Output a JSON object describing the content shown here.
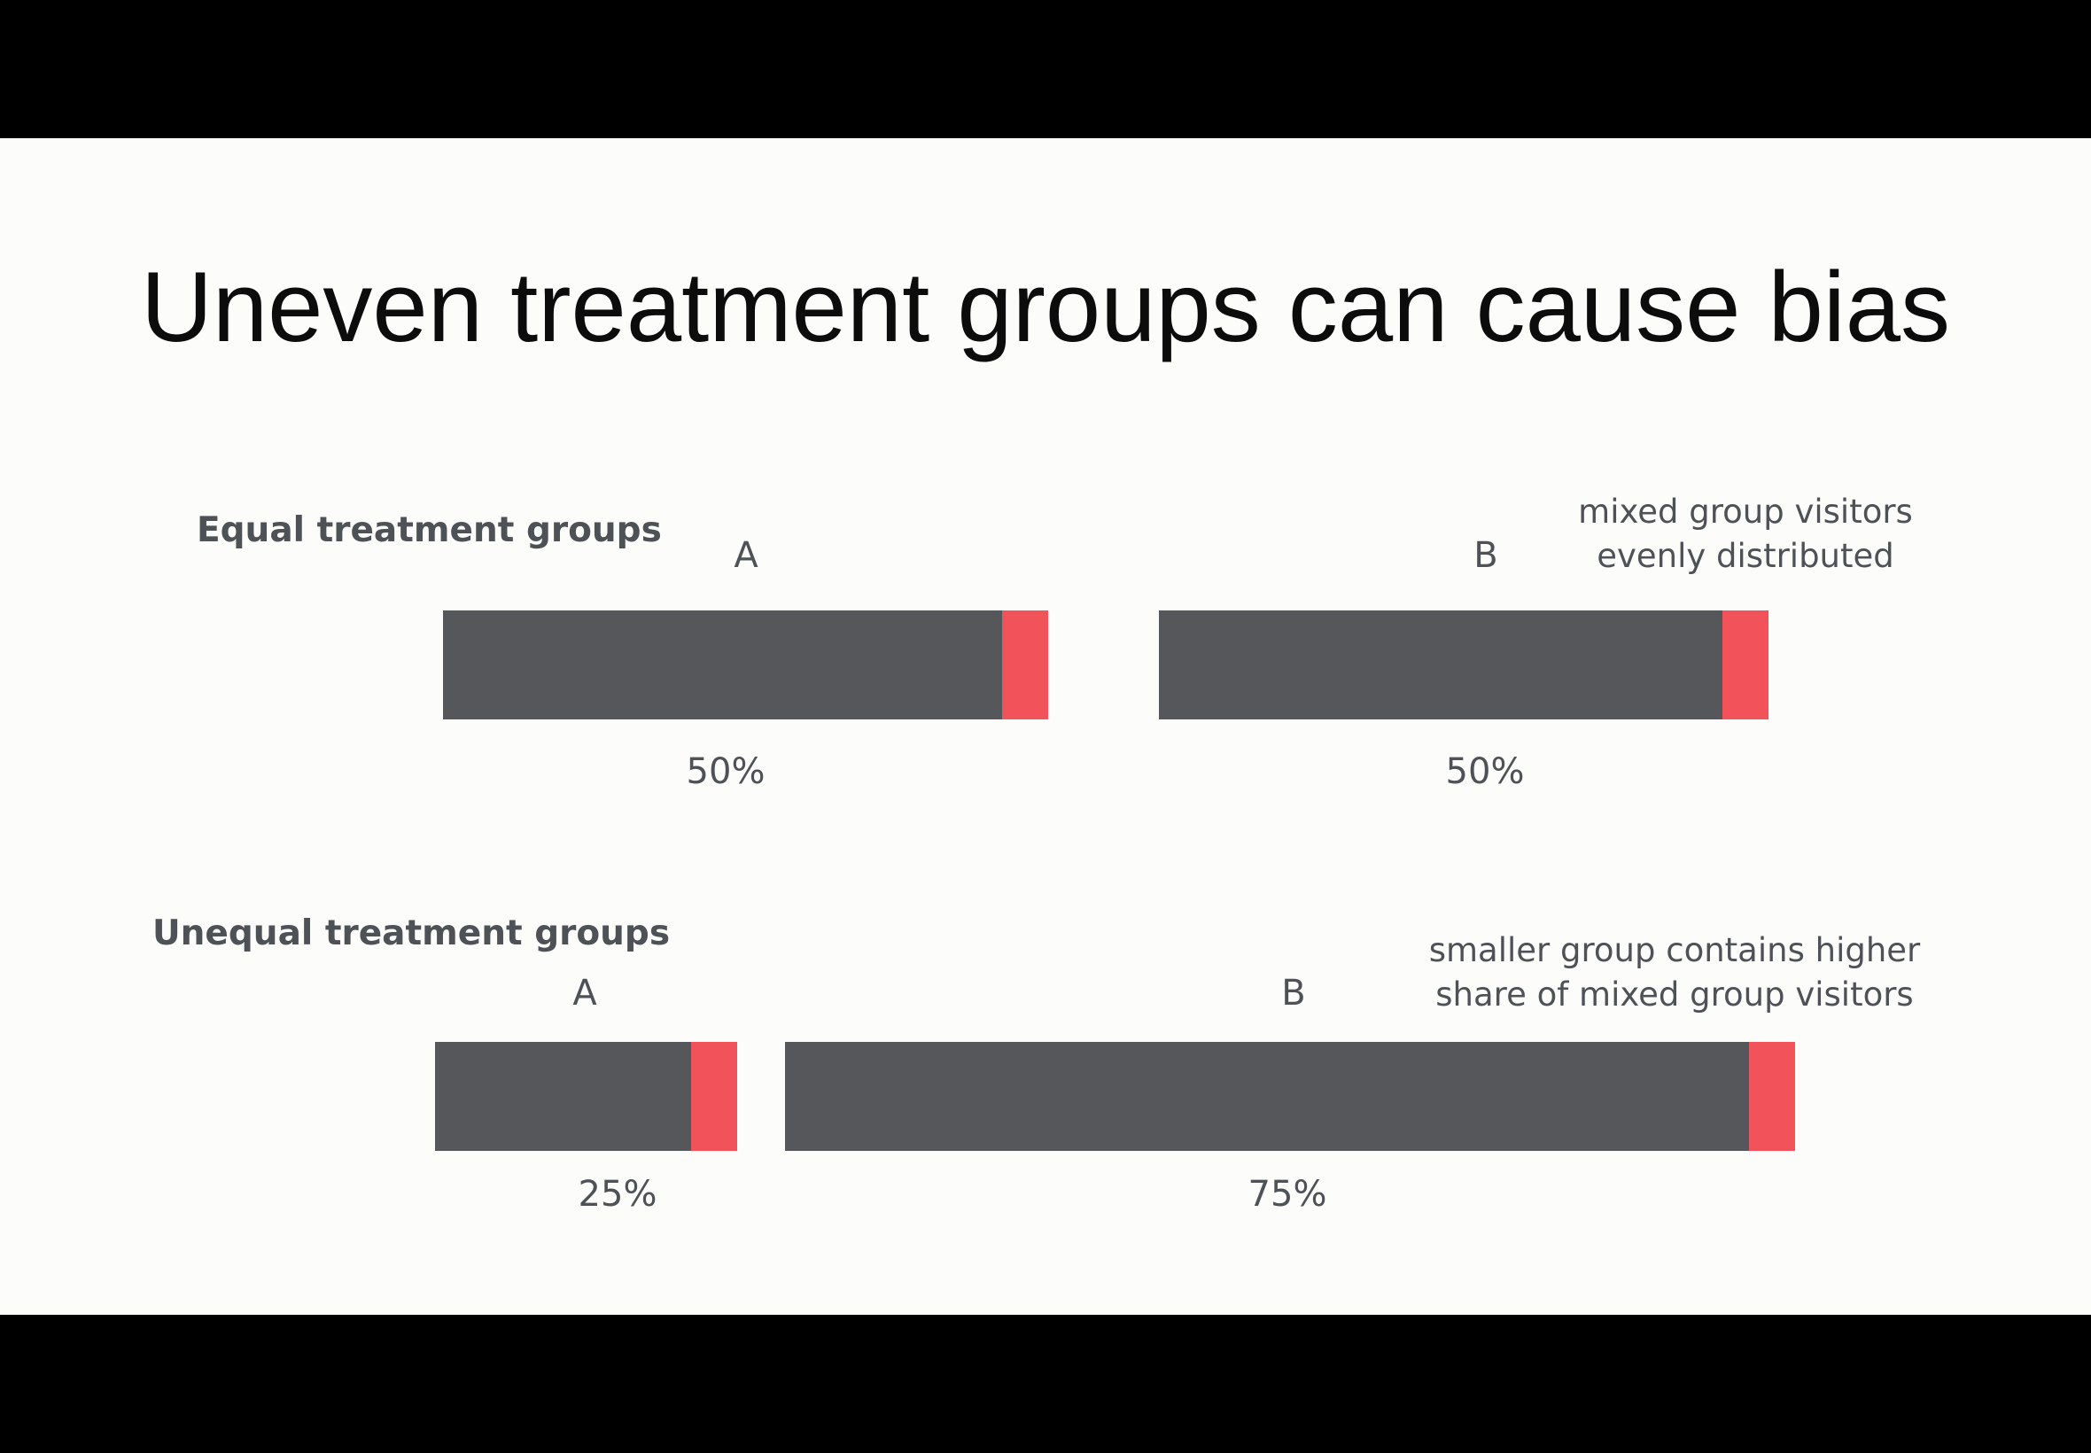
{
  "title": "Uneven treatment groups can cause bias",
  "colors": {
    "background": "#fcfcfb",
    "bar": "#55575a",
    "mixed": "#f2525a",
    "text": "#4e5257"
  },
  "equal": {
    "label": "Equal treatment groups",
    "note_line1": "mixed group visitors",
    "note_line2": "evenly distributed",
    "groups": [
      {
        "name": "A",
        "share_label": "50%"
      },
      {
        "name": "B",
        "share_label": "50%"
      }
    ]
  },
  "unequal": {
    "label": "Unequal treatment groups",
    "note_line1": "smaller group contains higher",
    "note_line2": "share of mixed group visitors",
    "groups": [
      {
        "name": "A",
        "share_label": "25%"
      },
      {
        "name": "B",
        "share_label": "75%"
      }
    ]
  }
}
